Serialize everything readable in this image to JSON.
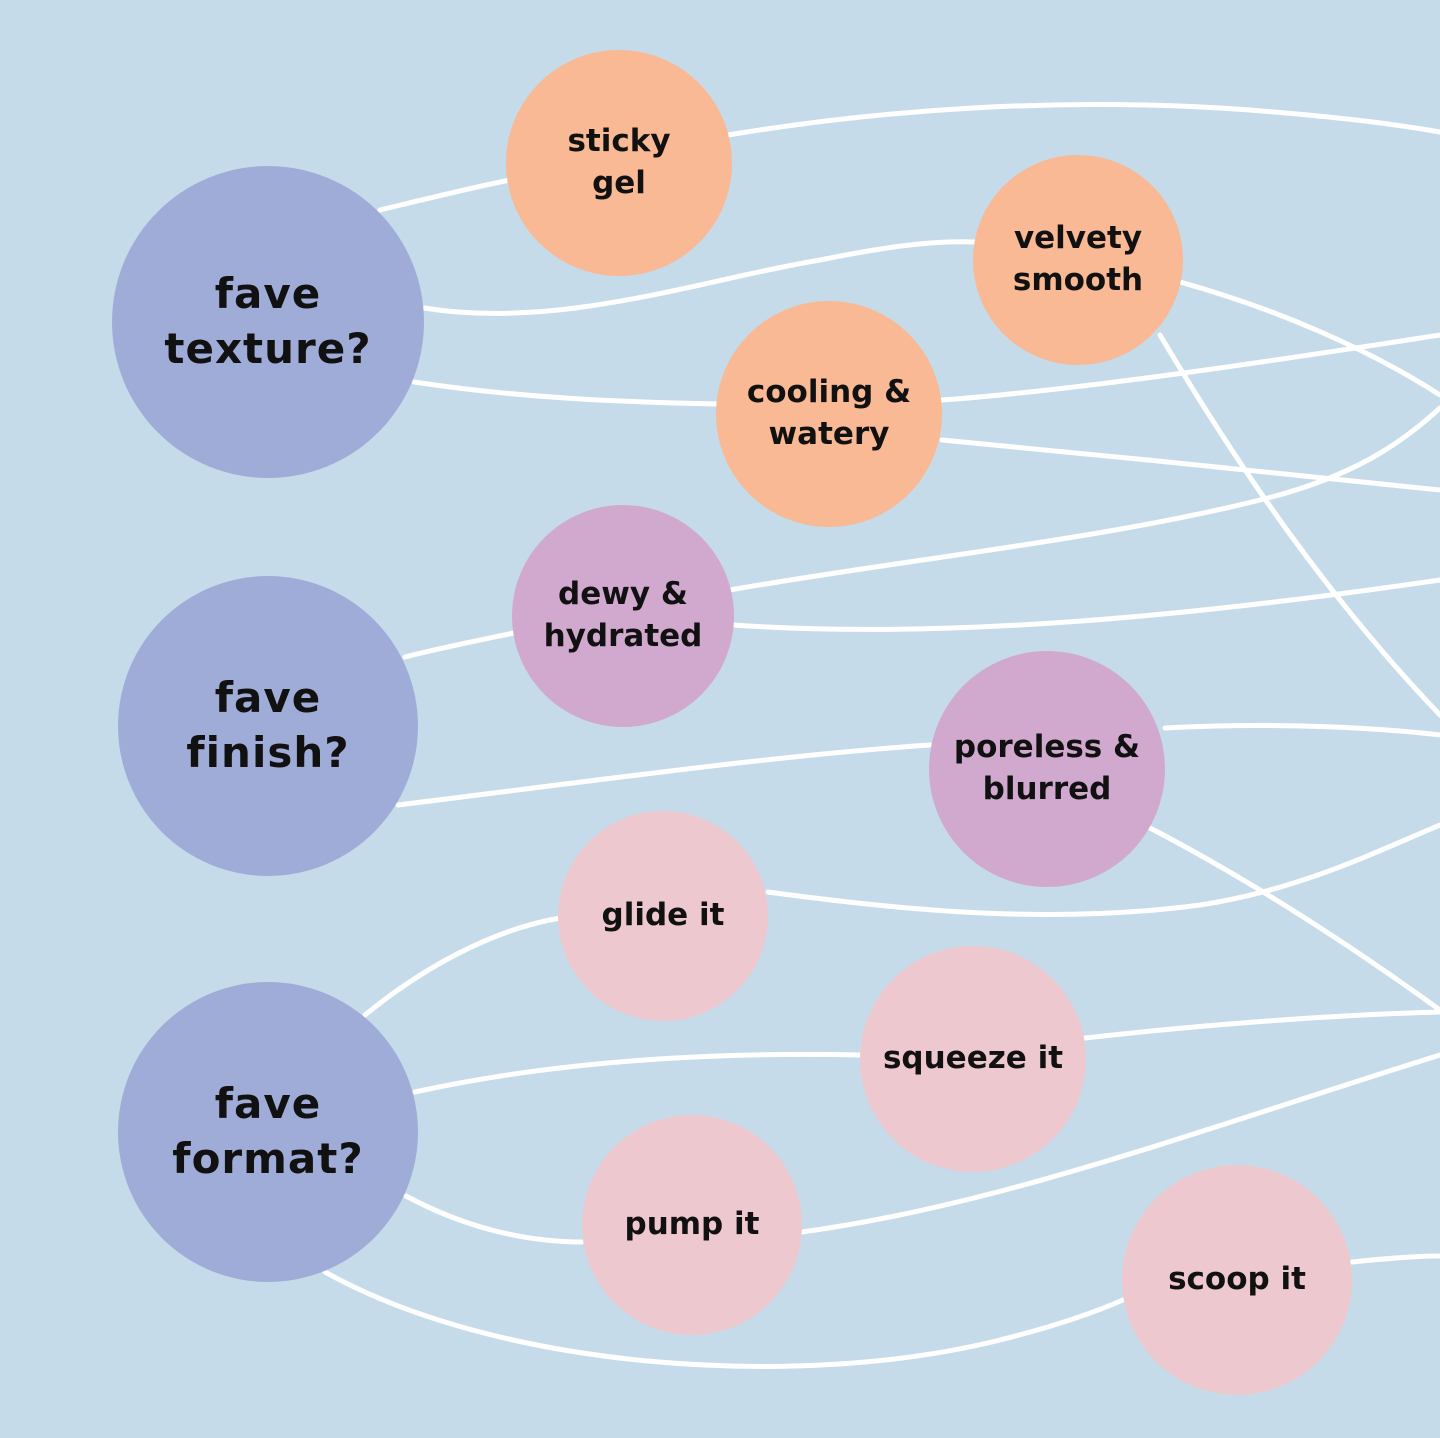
{
  "questions": [
    {
      "id": "texture",
      "label": "fave\ntexture?"
    },
    {
      "id": "finish",
      "label": "fave\nfinish?"
    },
    {
      "id": "format",
      "label": "fave\nformat?"
    }
  ],
  "answers": {
    "texture": [
      "sticky\ngel",
      "velvety\nsmooth",
      "cooling &\nwatery"
    ],
    "finish": [
      "dewy &\nhydrated",
      "poreless &\nblurred"
    ],
    "format": [
      "glide it",
      "squeeze it",
      "pump it",
      "scoop it"
    ]
  },
  "colors": {
    "background": "#c5dbe9",
    "question": "#a0acd8",
    "texture": "#f9b994",
    "finish": "#d1a9cf",
    "format": "#eec8cf",
    "connector": "#ffffff"
  }
}
